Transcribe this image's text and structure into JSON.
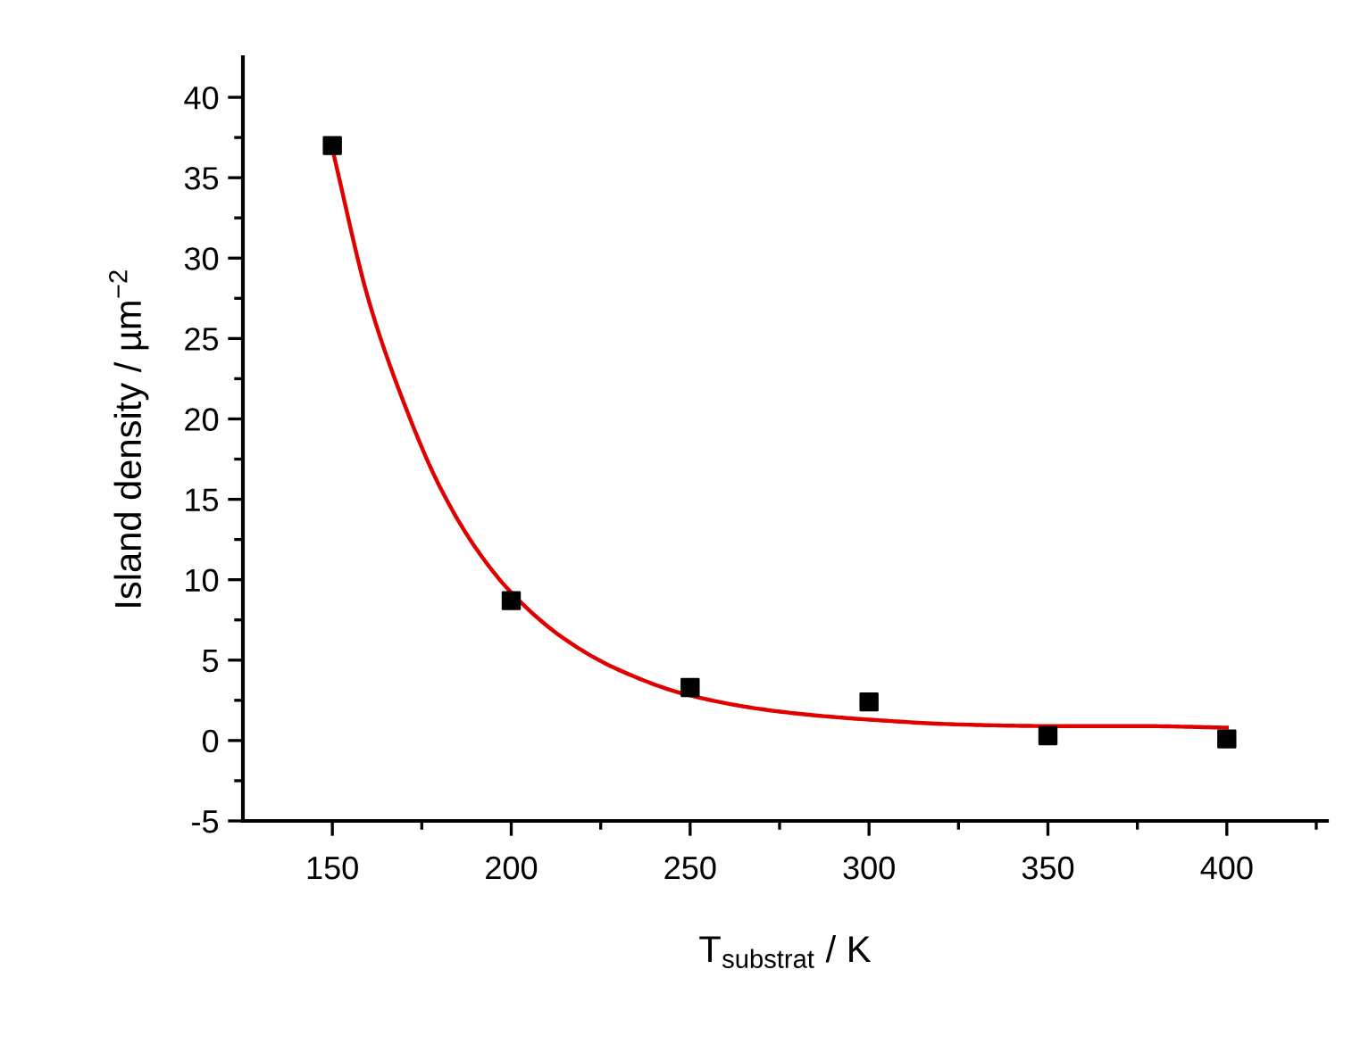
{
  "chart_data": {
    "type": "scatter",
    "xlabel": "T$_{substrat}$ / K",
    "ylabel": "Island density / µm$^{−2}$",
    "xlim": [
      125,
      428
    ],
    "ylim": [
      -5,
      42.5
    ],
    "xticks": [
      150,
      {
        "value": 175,
        "label": null
      },
      200,
      {
        "value": 225,
        "label": null
      },
      250,
      {
        "value": 275,
        "label": null
      },
      300,
      {
        "value": 325,
        "label": null
      },
      350,
      {
        "value": 375,
        "label": null
      },
      400,
      {
        "value": 425,
        "label": null
      }
    ],
    "yticks": [
      -5,
      {
        "value": -2.5,
        "label": null
      },
      0,
      {
        "value": 2.5,
        "label": null
      },
      5,
      {
        "value": 7.5,
        "label": null
      },
      10,
      {
        "value": 12.5,
        "label": null
      },
      15,
      {
        "value": 17.5,
        "label": null
      },
      20,
      {
        "value": 22.5,
        "label": null
      },
      25,
      {
        "value": 27.5,
        "label": null
      },
      30,
      {
        "value": 32.5,
        "label": null
      },
      35,
      {
        "value": 37.5,
        "label": null
      },
      40
    ],
    "grid": false,
    "legend": false,
    "marker": "square",
    "series": [
      {
        "type": "line",
        "color": "#e00000",
        "marker": "none",
        "x": [
          150,
          160,
          170,
          180,
          190,
          200,
          215,
          230,
          250,
          275,
          300,
          325,
          350,
          375,
          400
        ],
        "values": [
          36.8,
          27.5,
          21,
          15.8,
          12,
          9.2,
          6.3,
          4.4,
          2.8,
          1.8,
          1.3,
          1.0,
          0.9,
          0.9,
          0.8
        ]
      },
      {
        "color": "#000000",
        "x": [
          150,
          200,
          250,
          300,
          350,
          400
        ],
        "values": [
          37,
          8.7,
          3.3,
          2.4,
          0.3,
          0.1
        ]
      }
    ]
  }
}
